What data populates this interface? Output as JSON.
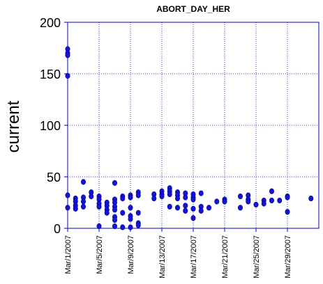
{
  "chart_data": {
    "type": "scatter",
    "title": "ABORT_DAY_HER",
    "xlabel": "",
    "ylabel": "current",
    "ylim": [
      0,
      200
    ],
    "yticks": [
      0,
      50,
      100,
      150,
      200
    ],
    "xlim": [
      "2007-03-01",
      "2007-04-02"
    ],
    "xticks": [
      "Mar/1/2007",
      "Mar/5/2007",
      "Mar/9/2007",
      "Mar/13/2007",
      "Mar/17/2007",
      "Mar/21/2007",
      "Mar/25/2007",
      "Mar/29/2007"
    ],
    "grid": true,
    "colors": {
      "marker": "#1414d2",
      "frame": "#0000c8"
    },
    "points": [
      [
        "2007-03-01",
        174
      ],
      [
        "2007-03-01",
        170
      ],
      [
        "2007-03-01",
        168
      ],
      [
        "2007-03-01",
        148
      ],
      [
        "2007-03-01",
        32
      ],
      [
        "2007-03-01",
        20
      ],
      [
        "2007-03-02",
        29
      ],
      [
        "2007-03-02",
        26
      ],
      [
        "2007-03-02",
        22
      ],
      [
        "2007-03-02",
        19
      ],
      [
        "2007-03-03",
        45
      ],
      [
        "2007-03-03",
        30
      ],
      [
        "2007-03-03",
        26
      ],
      [
        "2007-03-03",
        21
      ],
      [
        "2007-03-04",
        35
      ],
      [
        "2007-03-04",
        31
      ],
      [
        "2007-03-05",
        31
      ],
      [
        "2007-03-05",
        28
      ],
      [
        "2007-03-05",
        24
      ],
      [
        "2007-03-05",
        21
      ],
      [
        "2007-03-05",
        2
      ],
      [
        "2007-03-06",
        25
      ],
      [
        "2007-03-06",
        22
      ],
      [
        "2007-03-06",
        18
      ],
      [
        "2007-03-06",
        15
      ],
      [
        "2007-03-07",
        44
      ],
      [
        "2007-03-07",
        28
      ],
      [
        "2007-03-07",
        25
      ],
      [
        "2007-03-07",
        21
      ],
      [
        "2007-03-07",
        18
      ],
      [
        "2007-03-07",
        11
      ],
      [
        "2007-03-07",
        8
      ],
      [
        "2007-03-07",
        2
      ],
      [
        "2007-03-08",
        31
      ],
      [
        "2007-03-08",
        29
      ],
      [
        "2007-03-08",
        15
      ],
      [
        "2007-03-08",
        1
      ],
      [
        "2007-03-09",
        32
      ],
      [
        "2007-03-09",
        30
      ],
      [
        "2007-03-09",
        20
      ],
      [
        "2007-03-09",
        12
      ],
      [
        "2007-03-09",
        9
      ],
      [
        "2007-03-09",
        1
      ],
      [
        "2007-03-10",
        35
      ],
      [
        "2007-03-10",
        32
      ],
      [
        "2007-03-10",
        15
      ],
      [
        "2007-03-10",
        5
      ],
      [
        "2007-03-10",
        3
      ],
      [
        "2007-03-12",
        33
      ],
      [
        "2007-03-12",
        29
      ],
      [
        "2007-03-13",
        36
      ],
      [
        "2007-03-13",
        33
      ],
      [
        "2007-03-13",
        31
      ],
      [
        "2007-03-14",
        39
      ],
      [
        "2007-03-14",
        36
      ],
      [
        "2007-03-14",
        33
      ],
      [
        "2007-03-14",
        21
      ],
      [
        "2007-03-15",
        35
      ],
      [
        "2007-03-15",
        32
      ],
      [
        "2007-03-15",
        29
      ],
      [
        "2007-03-15",
        20
      ],
      [
        "2007-03-16",
        34
      ],
      [
        "2007-03-16",
        30
      ],
      [
        "2007-03-16",
        22
      ],
      [
        "2007-03-16",
        17
      ],
      [
        "2007-03-17",
        33
      ],
      [
        "2007-03-17",
        30
      ],
      [
        "2007-03-17",
        28
      ],
      [
        "2007-03-17",
        19
      ],
      [
        "2007-03-17",
        10
      ],
      [
        "2007-03-18",
        34
      ],
      [
        "2007-03-18",
        21
      ],
      [
        "2007-03-18",
        17
      ],
      [
        "2007-03-19",
        20
      ],
      [
        "2007-03-20",
        26
      ],
      [
        "2007-03-21",
        28
      ],
      [
        "2007-03-21",
        26
      ],
      [
        "2007-03-23",
        31
      ],
      [
        "2007-03-23",
        20
      ],
      [
        "2007-03-24",
        32
      ],
      [
        "2007-03-24",
        28
      ],
      [
        "2007-03-24",
        26
      ],
      [
        "2007-03-25",
        23
      ],
      [
        "2007-03-26",
        27
      ],
      [
        "2007-03-26",
        24
      ],
      [
        "2007-03-27",
        36
      ],
      [
        "2007-03-27",
        27
      ],
      [
        "2007-03-28",
        27
      ],
      [
        "2007-03-29",
        31
      ],
      [
        "2007-03-29",
        30
      ],
      [
        "2007-03-29",
        16
      ],
      [
        "2007-04-01",
        29
      ]
    ]
  }
}
